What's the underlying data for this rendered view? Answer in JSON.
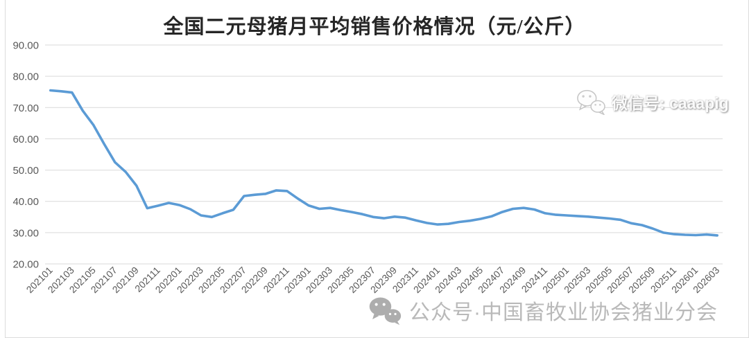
{
  "title": "全国二元母猪月平均销售价格情况（元/公斤）",
  "watermark_top": {
    "icon": "wechat-icon",
    "text": "微信号: caaapig"
  },
  "watermark_bottom": {
    "icon": "wechat-icon",
    "text": "公众号·中国畜牧业协会猪业分会"
  },
  "colors": {
    "line": "#5B9BD5",
    "grid": "#d9d9d9",
    "axis_text": "#595959",
    "title_text": "#262626",
    "watermark_gray": "#b6b6b6",
    "watermark_icon": "#a9a9a9",
    "border": "#dcdcdc",
    "background": "#ffffff"
  },
  "chart_data": {
    "type": "line",
    "title": "全国二元母猪月平均销售价格情况（元/公斤）",
    "xlabel": "",
    "ylabel": "",
    "ylim": [
      20,
      90
    ],
    "y_tick_step": 10,
    "y_tick_format": "0.00",
    "x_label_every": 2,
    "grid": "horizontal",
    "legend": "none",
    "x": [
      "202101",
      "202102",
      "202103",
      "202104",
      "202105",
      "202106",
      "202107",
      "202108",
      "202109",
      "202110",
      "202111",
      "202112",
      "202201",
      "202202",
      "202203",
      "202204",
      "202205",
      "202206",
      "202207",
      "202208",
      "202209",
      "202210",
      "202211",
      "202212",
      "202301",
      "202302",
      "202303",
      "202304",
      "202305",
      "202306",
      "202307",
      "202308",
      "202309",
      "202310",
      "202311",
      "202312",
      "202401",
      "202402",
      "202403",
      "202404",
      "202405",
      "202406",
      "202407",
      "202408",
      "202409",
      "202410",
      "202411",
      "202412",
      "202501",
      "202502",
      "202503",
      "202504",
      "202505",
      "202506",
      "202507",
      "202508",
      "202509",
      "202510",
      "202511",
      "202512",
      "202601",
      "202602",
      "202603"
    ],
    "series": [
      {
        "name": "全国二元母猪月平均销售价格(元/公斤)",
        "values": [
          75.5,
          75.2,
          74.8,
          69.0,
          64.4,
          58.3,
          52.5,
          49.4,
          45.0,
          37.8,
          38.6,
          39.5,
          38.8,
          37.5,
          35.5,
          35.0,
          36.2,
          37.3,
          41.7,
          42.1,
          42.4,
          43.5,
          43.3,
          40.9,
          38.7,
          37.6,
          37.9,
          37.2,
          36.6,
          35.9,
          35.0,
          34.6,
          35.1,
          34.8,
          33.9,
          33.1,
          32.6,
          32.8,
          33.4,
          33.8,
          34.4,
          35.2,
          36.6,
          37.6,
          37.9,
          37.4,
          36.2,
          35.7,
          35.5,
          35.3,
          35.1,
          34.8,
          34.5,
          34.1,
          33.0,
          32.4,
          31.3,
          30.0,
          29.5,
          29.3,
          29.2,
          29.4,
          29.1
        ]
      }
    ]
  }
}
